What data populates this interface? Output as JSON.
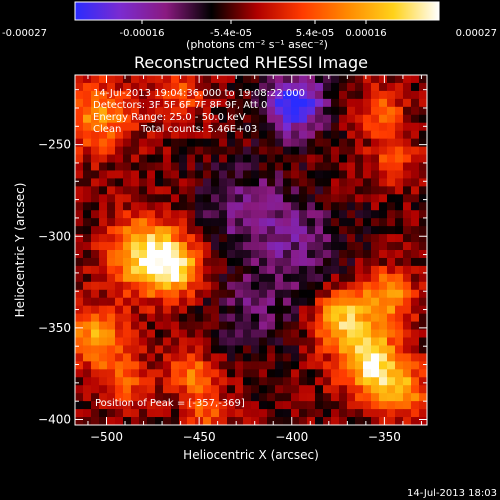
{
  "colorbar": {
    "ticks": [
      "-0.00027",
      "-0.00016",
      "-5.4e-05",
      "5.4e-05",
      "0.00016",
      "0.00027"
    ],
    "unit_label": "(photons cm⁻² s⁻¹ asec⁻²)",
    "colors": [
      "#2a2cff",
      "#7b2bd0",
      "#8a1a80",
      "#000000",
      "#b00000",
      "#ff3b00",
      "#ff8a00",
      "#ffd21a",
      "#ffffff"
    ]
  },
  "chart_data": {
    "type": "heatmap",
    "title": "Reconstructed RHESSI Image",
    "xlabel": "Heliocentric X (arcsec)",
    "ylabel": "Heliocentric Y (arcsec)",
    "xlim": [
      -517,
      -327
    ],
    "ylim": [
      -403,
      -212
    ],
    "xticks": [
      -500,
      -450,
      -400,
      -350
    ],
    "yticks": [
      -250,
      -300,
      -350,
      -400
    ],
    "value_range": [
      -0.00027,
      0.00027
    ],
    "info": {
      "time": "14-Jul-2013 19:04:36.000 to 19:08:22.000",
      "detectors": "Detectors: 3F 5F 6F 7F 8F 9F, Att 0",
      "energy": "Energy Range: 25.0 - 50.0 keV",
      "method": "Clean",
      "counts": "Total counts: 5.46E+03"
    },
    "peak_label": "Position of Peak = [-357,-369]",
    "sources": [
      {
        "x": -478,
        "y": -310,
        "sigma": 14,
        "amp": 0.00027
      },
      {
        "x": -462,
        "y": -318,
        "sigma": 10,
        "amp": 0.00018
      },
      {
        "x": -357,
        "y": -369,
        "sigma": 12,
        "amp": 0.00027
      },
      {
        "x": -372,
        "y": -345,
        "sigma": 11,
        "amp": 0.00022
      },
      {
        "x": -348,
        "y": -332,
        "sigma": 10,
        "amp": 0.00018
      },
      {
        "x": -340,
        "y": -385,
        "sigma": 10,
        "amp": 0.00016
      },
      {
        "x": -505,
        "y": -355,
        "sigma": 12,
        "amp": 0.00018
      },
      {
        "x": -490,
        "y": -380,
        "sigma": 9,
        "amp": 0.00012
      },
      {
        "x": -455,
        "y": -375,
        "sigma": 9,
        "amp": 0.00014
      },
      {
        "x": -445,
        "y": -395,
        "sigma": 8,
        "amp": 0.00012
      },
      {
        "x": -505,
        "y": -235,
        "sigma": 14,
        "amp": 0.00016
      },
      {
        "x": -460,
        "y": -222,
        "sigma": 10,
        "amp": 0.0001
      },
      {
        "x": -352,
        "y": -232,
        "sigma": 9,
        "amp": 0.00012
      },
      {
        "x": -345,
        "y": -258,
        "sigma": 9,
        "amp": 0.0001
      },
      {
        "x": -398,
        "y": -228,
        "sigma": 12,
        "amp": -0.00024
      },
      {
        "x": -425,
        "y": -285,
        "sigma": 18,
        "amp": -0.0001
      },
      {
        "x": -395,
        "y": -305,
        "sigma": 18,
        "amp": -9e-05
      },
      {
        "x": -420,
        "y": -340,
        "sigma": 16,
        "amp": -8e-05
      }
    ]
  },
  "timestamp": "14-Jul-2013 18:03"
}
